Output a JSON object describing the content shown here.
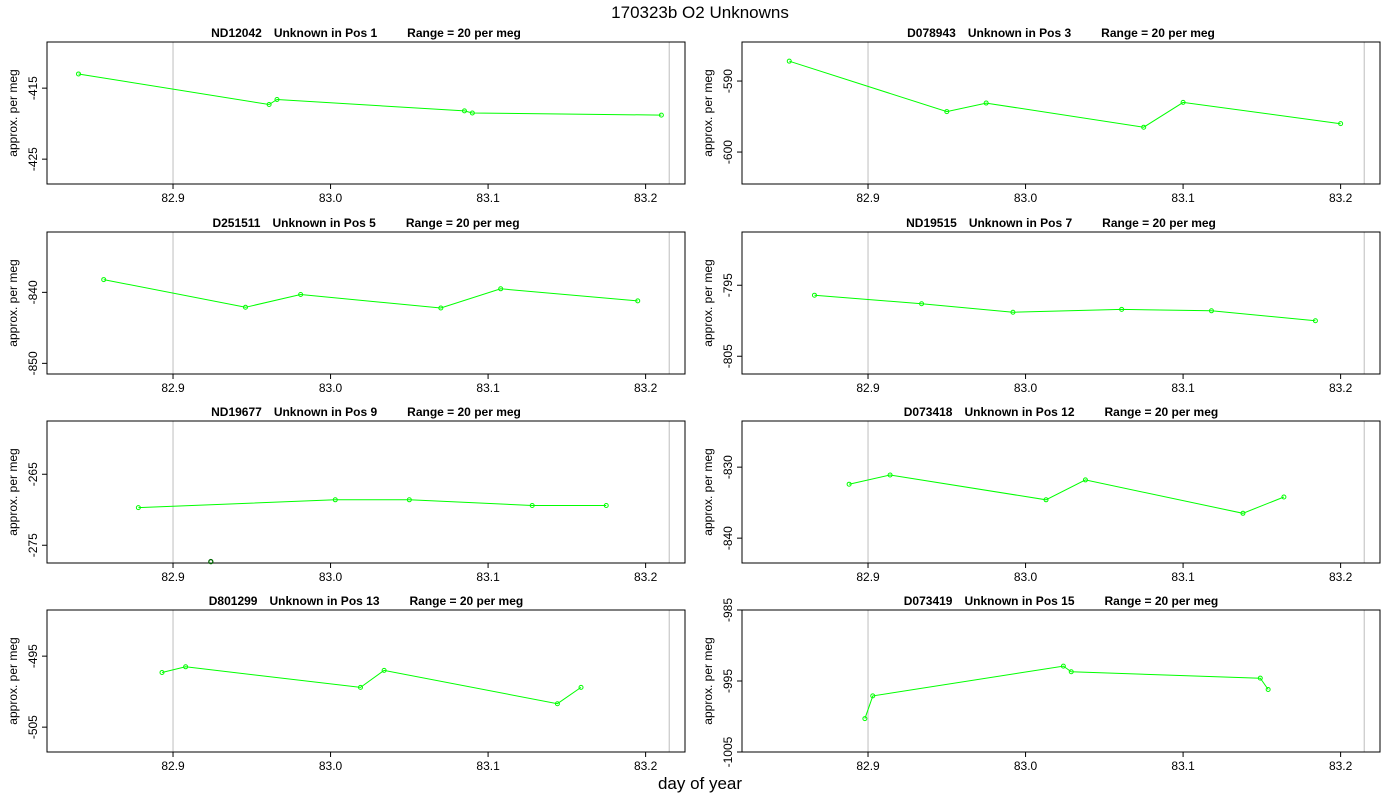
{
  "title": "170323b  O2 Unknowns",
  "xlabel": "day of year",
  "colors": {
    "series": "#00ff00",
    "outlier": "#006400",
    "vline": "#c8c8c8",
    "frame": "#000000"
  },
  "chart_data": [
    {
      "type": "line",
      "id": "ND12042",
      "position": "Unknown in Pos 1",
      "range_text": "Range = 20 per meg",
      "ylabel": "approx. per meg",
      "xlim": [
        82.82,
        83.225
      ],
      "ylim": [
        -428.5,
        -408.5
      ],
      "xticks": [
        82.9,
        83.0,
        83.1,
        83.2
      ],
      "xtick_labels": [
        "82.9",
        "83.0",
        "83.1",
        "83.2"
      ],
      "yticks": [
        -415,
        -425
      ],
      "ytick_labels": [
        "-415",
        "-425"
      ],
      "vlines": [
        82.9,
        83.215
      ],
      "x": [
        82.84,
        82.961,
        82.966,
        83.085,
        83.09,
        83.21
      ],
      "y": [
        -413.0,
        -417.3,
        -416.6,
        -418.2,
        -418.5,
        -418.8
      ],
      "outliers": []
    },
    {
      "type": "line",
      "id": "D078943",
      "position": "Unknown in Pos 3",
      "range_text": "Range = 20 per meg",
      "ylabel": "approx. per meg",
      "xlim": [
        82.82,
        83.225
      ],
      "ylim": [
        -604.5,
        -584.5
      ],
      "xticks": [
        82.9,
        83.0,
        83.1,
        83.2
      ],
      "xtick_labels": [
        "82.9",
        "83.0",
        "83.1",
        "83.2"
      ],
      "yticks": [
        -590,
        -600
      ],
      "ytick_labels": [
        "-590",
        "-600"
      ],
      "vlines": [
        82.9,
        83.215
      ],
      "x": [
        82.85,
        82.95,
        82.975,
        83.075,
        83.1,
        83.2
      ],
      "y": [
        -587.2,
        -594.3,
        -593.1,
        -596.5,
        -593.0,
        -596.0
      ],
      "outliers": []
    },
    {
      "type": "line",
      "id": "D251511",
      "position": "Unknown in Pos 5",
      "range_text": "Range = 20 per meg",
      "ylabel": "approx. per meg",
      "xlim": [
        82.82,
        83.225
      ],
      "ylim": [
        -851.5,
        -831.5
      ],
      "xticks": [
        82.9,
        83.0,
        83.1,
        83.2
      ],
      "xtick_labels": [
        "82.9",
        "83.0",
        "83.1",
        "83.2"
      ],
      "yticks": [
        -840,
        -850
      ],
      "ytick_labels": [
        "-840",
        "-850"
      ],
      "vlines": [
        82.9,
        83.215
      ],
      "x": [
        82.856,
        82.946,
        82.981,
        83.07,
        83.108,
        83.195
      ],
      "y": [
        -838.2,
        -842.1,
        -840.3,
        -842.2,
        -839.5,
        -841.2
      ],
      "outliers": []
    },
    {
      "type": "line",
      "id": "ND19515",
      "position": "Unknown in Pos 7",
      "range_text": "Range = 20 per meg",
      "ylabel": "approx. per meg",
      "xlim": [
        82.82,
        83.225
      ],
      "ylim": [
        -807.5,
        -787.5
      ],
      "xticks": [
        82.9,
        83.0,
        83.1,
        83.2
      ],
      "xtick_labels": [
        "82.9",
        "83.0",
        "83.1",
        "83.2"
      ],
      "yticks": [
        -795,
        -805
      ],
      "ytick_labels": [
        "-795",
        "-805"
      ],
      "vlines": [
        82.9,
        83.215
      ],
      "x": [
        82.866,
        82.934,
        82.992,
        83.061,
        83.118,
        83.184
      ],
      "y": [
        -796.4,
        -797.6,
        -798.8,
        -798.4,
        -798.6,
        -800.0
      ],
      "outliers": []
    },
    {
      "type": "line",
      "id": "ND19677",
      "position": "Unknown in Pos 9",
      "range_text": "Range = 20 per meg",
      "ylabel": "approx. per meg",
      "xlim": [
        82.82,
        83.225
      ],
      "ylim": [
        -277.5,
        -257.5
      ],
      "xticks": [
        82.9,
        83.0,
        83.1,
        83.2
      ],
      "xtick_labels": [
        "82.9",
        "83.0",
        "83.1",
        "83.2"
      ],
      "yticks": [
        -265,
        -275
      ],
      "ytick_labels": [
        "-265",
        "-275"
      ],
      "vlines": [
        82.9,
        83.215
      ],
      "x": [
        82.878,
        83.003,
        83.05,
        83.128,
        83.175
      ],
      "y": [
        -269.7,
        -268.6,
        -268.6,
        -269.4,
        -269.4
      ],
      "outliers": [
        {
          "x": 82.924,
          "y": -277.3
        }
      ]
    },
    {
      "type": "line",
      "id": "D073418",
      "position": "Unknown in Pos 12",
      "range_text": "Range = 20 per meg",
      "ylabel": "approx. per meg",
      "xlim": [
        82.82,
        83.225
      ],
      "ylim": [
        -843.5,
        -823.5
      ],
      "xticks": [
        82.9,
        83.0,
        83.1,
        83.2
      ],
      "xtick_labels": [
        "82.9",
        "83.0",
        "83.1",
        "83.2"
      ],
      "yticks": [
        -830,
        -840
      ],
      "ytick_labels": [
        "-830",
        "-840"
      ],
      "vlines": [
        82.9,
        83.215
      ],
      "x": [
        82.888,
        82.914,
        83.013,
        83.038,
        83.138,
        83.164
      ],
      "y": [
        -832.4,
        -831.1,
        -834.6,
        -831.8,
        -836.5,
        -834.2
      ],
      "outliers": []
    },
    {
      "type": "line",
      "id": "D801299",
      "position": "Unknown in Pos 13",
      "range_text": "Range = 20 per meg",
      "ylabel": "approx. per meg",
      "xlim": [
        82.82,
        83.225
      ],
      "ylim": [
        -508.5,
        -488.5
      ],
      "xticks": [
        82.9,
        83.0,
        83.1,
        83.2
      ],
      "xtick_labels": [
        "82.9",
        "83.0",
        "83.1",
        "83.2"
      ],
      "yticks": [
        -495,
        -505
      ],
      "ytick_labels": [
        "-495",
        "-505"
      ],
      "vlines": [
        82.9,
        83.215
      ],
      "x": [
        82.893,
        82.908,
        83.019,
        83.034,
        83.144,
        83.159
      ],
      "y": [
        -497.3,
        -496.5,
        -499.4,
        -497.0,
        -501.7,
        -499.4
      ],
      "outliers": []
    },
    {
      "type": "line",
      "id": "D073419",
      "position": "Unknown in Pos 15",
      "range_text": "Range = 20 per meg",
      "ylabel": "approx. per meg",
      "xlim": [
        82.82,
        83.225
      ],
      "ylim": [
        -1005.0,
        -985.0
      ],
      "xticks": [
        82.9,
        83.0,
        83.1,
        83.2
      ],
      "xtick_labels": [
        "82.9",
        "83.0",
        "83.1",
        "83.2"
      ],
      "yticks": [
        -985,
        -995,
        -1005
      ],
      "ytick_labels": [
        "-985",
        "-995",
        "-1005"
      ],
      "vlines": [
        82.9,
        83.215
      ],
      "x": [
        82.898,
        82.903,
        83.024,
        83.029,
        83.149,
        83.154
      ],
      "y": [
        -1000.3,
        -997.1,
        -992.9,
        -993.7,
        -994.6,
        -996.2
      ],
      "outliers": []
    }
  ]
}
